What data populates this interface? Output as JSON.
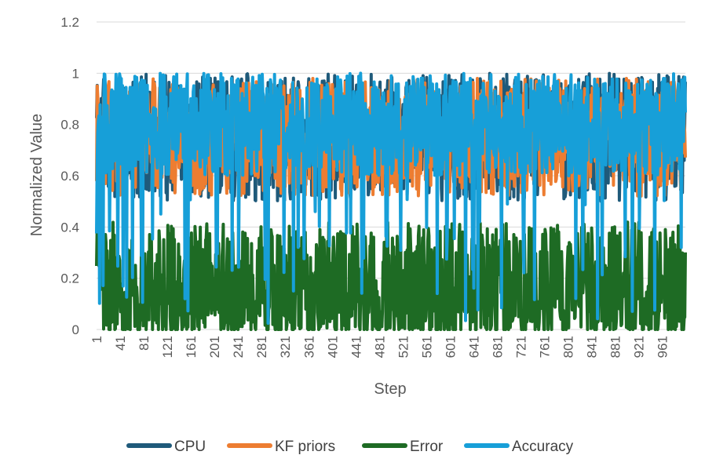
{
  "chart_data": {
    "type": "line",
    "title": "",
    "xlabel": "Step",
    "ylabel": "Normalized Value",
    "ylim": [
      0,
      1.2
    ],
    "y_ticks": [
      "0",
      "0.2",
      "0.4",
      "0.6",
      "0.8",
      "1",
      "1.2"
    ],
    "x_range": [
      1,
      1000
    ],
    "x_ticks": [
      "1",
      "41",
      "81",
      "121",
      "161",
      "201",
      "241",
      "281",
      "321",
      "361",
      "401",
      "441",
      "481",
      "521",
      "561",
      "601",
      "641",
      "681",
      "721",
      "761",
      "801",
      "841",
      "881",
      "921",
      "961"
    ],
    "grid": true,
    "legend_position": "bottom",
    "series": [
      {
        "name": "CPU",
        "color": "#1f5a7a",
        "level_min": 0.5,
        "level_max": 1.0,
        "values_note_min": 0.5,
        "values_note_max": 1.0
      },
      {
        "name": "KF priors",
        "color": "#ed7d31",
        "level_min": 0.52,
        "level_max": 0.98,
        "values_note_min": 0.52,
        "values_note_max": 0.98
      },
      {
        "name": "Error",
        "color": "#1e6b24",
        "level_min": 0.0,
        "level_max": 0.42,
        "values_note_min": 0.0,
        "values_note_max": 0.42
      },
      {
        "name": "Accuracy",
        "color": "#179fd8",
        "level_min": 0.02,
        "level_max": 1.0,
        "values_note_min": 0.02,
        "values_note_max": 1.0
      }
    ]
  }
}
